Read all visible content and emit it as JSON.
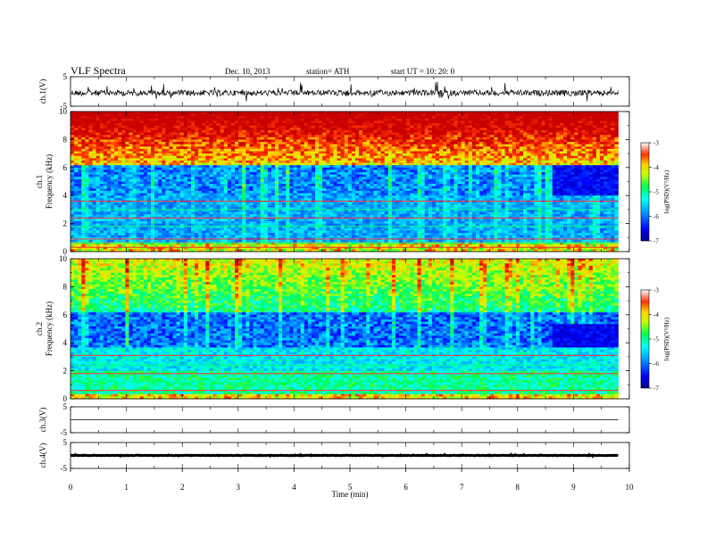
{
  "header": {
    "title": "VLF  Spectra",
    "date": "Dec. 10, 2013",
    "station": "station= ATH",
    "start": "start  UT  =    10: 20: 0"
  },
  "chart_data": {
    "type": "heatmap",
    "xlabel": "Time  (min)",
    "xlim": [
      0,
      10
    ],
    "x_ticks": [
      0,
      1,
      2,
      3,
      4,
      5,
      6,
      7,
      8,
      9,
      10
    ],
    "data_end_min": 9.8,
    "panels": [
      {
        "kind": "waveform",
        "ylabel": "ch.1(V)",
        "ylim": [
          -5,
          5
        ],
        "y_ticks": [
          5,
          -5
        ],
        "baseline": -0.5,
        "amplitude": 2.5
      },
      {
        "kind": "spectrogram",
        "ylabel_top": "ch.1",
        "ylabel": "Frequency  (kHz)",
        "ylim": [
          0,
          10
        ],
        "y_ticks": [
          0,
          2,
          4,
          6,
          8,
          10
        ],
        "colorbar_label": "log(PSD)(V²/Hz)",
        "colorbar_ticks": [
          -3,
          -4,
          -5,
          -6,
          -7
        ],
        "clim": [
          -7,
          -3
        ]
      },
      {
        "kind": "spectrogram",
        "ylabel_top": "ch.2",
        "ylabel": "Frequency  (kHz)",
        "ylim": [
          0,
          10
        ],
        "y_ticks": [
          0,
          2,
          4,
          6,
          8,
          10
        ],
        "colorbar_label": "log(PSD)(V²/Hz)",
        "colorbar_ticks": [
          -3,
          -4,
          -5,
          -6,
          -7
        ],
        "clim": [
          -7,
          -3
        ]
      },
      {
        "kind": "waveform",
        "ylabel": "ch.3(V)",
        "ylim": [
          -5,
          5
        ],
        "y_ticks": [
          5,
          -5
        ],
        "baseline": 0,
        "amplitude": 0
      },
      {
        "kind": "waveform",
        "ylabel": "ch.4(V)",
        "ylim": [
          -5,
          5
        ],
        "y_ticks": [
          5,
          -5
        ],
        "baseline": 0,
        "amplitude": 0.2
      }
    ]
  }
}
